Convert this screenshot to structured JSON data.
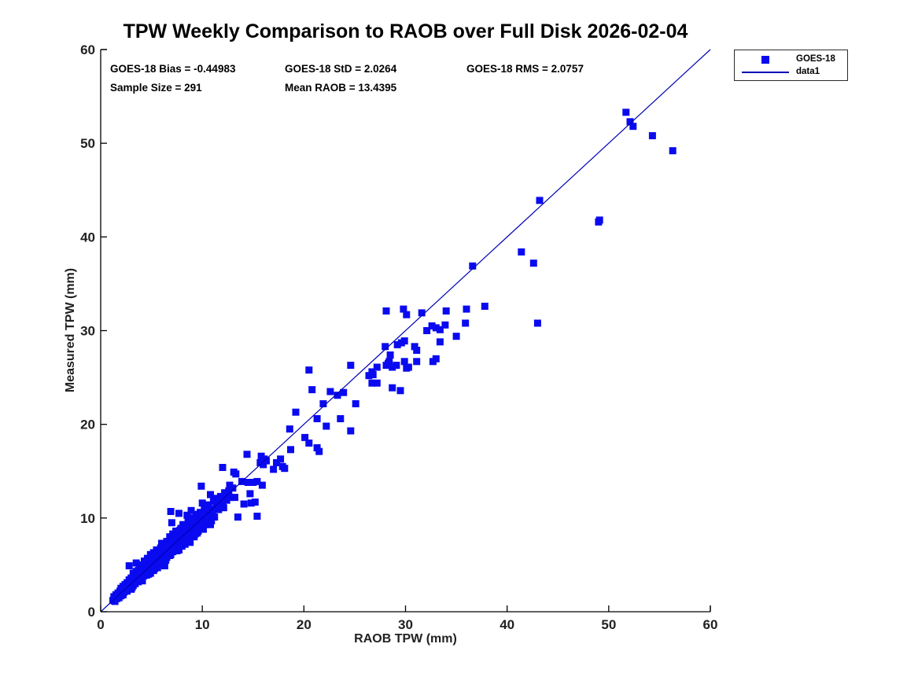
{
  "title": "TPW Weekly Comparison to RAOB over Full Disk 2026-02-04",
  "stats": {
    "bias": "GOES-18 Bias = -0.44983",
    "std": "GOES-18 StD = 2.0264",
    "rms": "GOES-18 RMS = 2.0757",
    "sample_size": "Sample Size = 291",
    "mean_raob": "Mean RAOB = 13.4395"
  },
  "legend": {
    "entries": [
      {
        "label": "GOES-18",
        "swatch": "square-marker"
      },
      {
        "label": "data1",
        "swatch": "line"
      }
    ]
  },
  "colors": {
    "marker": "#0a0af0",
    "line": "#0000b4",
    "axis": "#000000",
    "tick_label": "#212121"
  },
  "chart_data": {
    "type": "scatter",
    "title": "TPW Weekly Comparison to RAOB over Full Disk 2026-02-04",
    "xlabel": "RAOB TPW (mm)",
    "ylabel": "Measured TPW (mm)",
    "xlim": [
      0,
      60
    ],
    "ylim": [
      0,
      60
    ],
    "xticks": [
      0,
      10,
      20,
      30,
      40,
      50,
      60
    ],
    "yticks": [
      0,
      10,
      20,
      30,
      40,
      50,
      60
    ],
    "grid": false,
    "legend_position": "outside-top-right",
    "annotations": [
      "GOES-18 Bias = -0.44983",
      "GOES-18 StD = 2.0264",
      "GOES-18 RMS = 2.0757",
      "Sample Size = 291",
      "Mean RAOB = 13.4395"
    ],
    "series": [
      {
        "name": "GOES-18",
        "type": "scatter",
        "marker": "square",
        "marker_size": 9,
        "color": "#0a0af0",
        "points": [
          [
            1.2,
            1.2
          ],
          [
            1.3,
            1.6
          ],
          [
            1.4,
            1.1
          ],
          [
            1.5,
            1.8
          ],
          [
            1.6,
            1.4
          ],
          [
            1.7,
            2.0
          ],
          [
            1.8,
            1.5
          ],
          [
            1.9,
            2.2
          ],
          [
            2.0,
            1.7
          ],
          [
            2.0,
            2.5
          ],
          [
            2.1,
            2.0
          ],
          [
            2.2,
            2.7
          ],
          [
            2.3,
            2.1
          ],
          [
            2.4,
            2.9
          ],
          [
            2.5,
            2.3
          ],
          [
            2.6,
            3.1
          ],
          [
            2.7,
            2.6
          ],
          [
            2.8,
            3.4
          ],
          [
            2.8,
            4.9
          ],
          [
            2.9,
            2.8
          ],
          [
            3.0,
            3.6
          ],
          [
            3.0,
            2.4
          ],
          [
            3.1,
            3.2
          ],
          [
            3.2,
            2.8
          ],
          [
            3.2,
            4.1
          ],
          [
            3.3,
            3.5
          ],
          [
            3.4,
            3.0
          ],
          [
            3.5,
            4.3
          ],
          [
            3.5,
            5.2
          ],
          [
            3.6,
            3.8
          ],
          [
            3.7,
            3.2
          ],
          [
            3.8,
            4.6
          ],
          [
            3.9,
            4.0
          ],
          [
            4.0,
            3.5
          ],
          [
            4.0,
            5.0
          ],
          [
            4.1,
            4.4
          ],
          [
            4.2,
            3.8
          ],
          [
            4.3,
            5.4
          ],
          [
            4.4,
            4.2
          ],
          [
            4.5,
            5.1
          ],
          [
            4.5,
            3.9
          ],
          [
            4.6,
            5.7
          ],
          [
            4.7,
            4.5
          ],
          [
            4.8,
            5.3
          ],
          [
            4.9,
            4.1
          ],
          [
            4.9,
            6.1
          ],
          [
            5.0,
            4.8
          ],
          [
            5.1,
            5.5
          ],
          [
            5.2,
            4.4
          ],
          [
            5.2,
            6.3
          ],
          [
            5.3,
            5.0
          ],
          [
            5.4,
            5.8
          ],
          [
            5.5,
            5.1
          ],
          [
            5.5,
            6.6
          ],
          [
            5.6,
            4.7
          ],
          [
            5.7,
            6.1
          ],
          [
            5.8,
            5.4
          ],
          [
            5.9,
            6.8
          ],
          [
            6.0,
            5.7
          ],
          [
            6.0,
            7.3
          ],
          [
            6.1,
            5.2
          ],
          [
            6.1,
            6.4
          ],
          [
            6.2,
            5.9
          ],
          [
            6.3,
            7.0
          ],
          [
            6.3,
            4.9
          ],
          [
            6.4,
            6.6
          ],
          [
            6.5,
            5.8
          ],
          [
            6.5,
            7.5
          ],
          [
            6.6,
            6.2
          ],
          [
            6.7,
            7.1
          ],
          [
            6.8,
            6.0
          ],
          [
            6.8,
            8.0
          ],
          [
            6.9,
            6.7
          ],
          [
            6.9,
            10.7
          ],
          [
            7.0,
            7.6
          ],
          [
            7.1,
            6.4
          ],
          [
            7.1,
            8.3
          ],
          [
            7.2,
            7.0
          ],
          [
            7.3,
            7.9
          ],
          [
            7.4,
            6.8
          ],
          [
            7.4,
            8.6
          ],
          [
            7.5,
            7.3
          ],
          [
            7.6,
            8.1
          ],
          [
            7.7,
            6.6
          ],
          [
            7.7,
            10.5
          ],
          [
            7.8,
            7.8
          ],
          [
            7.9,
            8.9
          ],
          [
            7.9,
            7.1
          ],
          [
            8.0,
            8.4
          ],
          [
            8.1,
            7.5
          ],
          [
            8.1,
            9.3
          ],
          [
            8.2,
            8.0
          ],
          [
            8.3,
            8.8
          ],
          [
            8.3,
            7.2
          ],
          [
            8.4,
            9.1
          ],
          [
            8.5,
            7.9
          ],
          [
            8.5,
            10.3
          ],
          [
            8.6,
            8.5
          ],
          [
            8.7,
            9.5
          ],
          [
            8.7,
            7.6
          ],
          [
            8.8,
            8.9
          ],
          [
            8.9,
            9.8
          ],
          [
            8.9,
            8.2
          ],
          [
            9.0,
            9.2
          ],
          [
            9.1,
            8.6
          ],
          [
            9.1,
            10.0
          ],
          [
            9.2,
            8.0
          ],
          [
            9.3,
            9.5
          ],
          [
            9.4,
            8.9
          ],
          [
            9.5,
            10.2
          ],
          [
            9.5,
            8.4
          ],
          [
            9.6,
            9.8
          ],
          [
            9.7,
            9.1
          ],
          [
            9.8,
            10.6
          ],
          [
            9.9,
            13.4
          ],
          [
            9.9,
            9.4
          ],
          [
            10.0,
            10.1
          ],
          [
            10.1,
            8.8
          ],
          [
            10.2,
            10.9
          ],
          [
            10.3,
            9.6
          ],
          [
            10.3,
            11.2
          ],
          [
            10.4,
            10.4
          ],
          [
            10.5,
            9.9
          ],
          [
            10.6,
            11.4
          ],
          [
            10.7,
            10.2
          ],
          [
            10.8,
            12.5
          ],
          [
            10.8,
            9.3
          ],
          [
            10.9,
            11.0
          ],
          [
            11.0,
            10.6
          ],
          [
            11.1,
            11.8
          ],
          [
            11.2,
            10.1
          ],
          [
            11.4,
            11.3
          ],
          [
            11.5,
            12.1
          ],
          [
            11.6,
            10.9
          ],
          [
            11.8,
            12.3
          ],
          [
            12.0,
            11.5
          ],
          [
            12.2,
            12.7
          ],
          [
            12.4,
            11.9
          ],
          [
            12.6,
            12.9
          ],
          [
            12.8,
            12.2
          ],
          [
            13.0,
            13.2
          ],
          [
            2.2,
            1.8
          ],
          [
            2.6,
            2.2
          ],
          [
            3.1,
            2.6
          ],
          [
            3.4,
            3.9
          ],
          [
            3.7,
            4.4
          ],
          [
            4.1,
            3.3
          ],
          [
            4.4,
            4.9
          ],
          [
            4.7,
            4.0
          ],
          [
            5.0,
            5.9
          ],
          [
            5.3,
            4.6
          ],
          [
            5.6,
            5.9
          ],
          [
            5.9,
            5.0
          ],
          [
            6.2,
            6.9
          ],
          [
            6.4,
            5.5
          ],
          [
            6.6,
            7.3
          ],
          [
            6.9,
            6.1
          ],
          [
            7.2,
            7.8
          ],
          [
            7.5,
            6.5
          ],
          [
            7.8,
            8.7
          ],
          [
            8.0,
            7.0
          ],
          [
            8.2,
            9.0
          ],
          [
            8.4,
            7.7
          ],
          [
            8.6,
            9.7
          ],
          [
            8.8,
            7.4
          ],
          [
            9.0,
            10.0
          ],
          [
            9.2,
            9.0
          ],
          [
            9.4,
            10.4
          ],
          [
            9.6,
            8.6
          ],
          [
            9.8,
            9.6
          ],
          [
            10.0,
            9.0
          ],
          [
            10.2,
            10.3
          ],
          [
            10.4,
            9.3
          ],
          [
            10.6,
            10.0
          ],
          [
            10.9,
            9.7
          ],
          [
            11.1,
            10.9
          ],
          [
            11.3,
            12.0
          ],
          [
            11.7,
            11.6
          ],
          [
            12.1,
            11.1
          ],
          [
            12.3,
            12.4
          ],
          [
            12.7,
            13.5
          ],
          [
            5.8,
            6.4
          ],
          [
            6.7,
            6.9
          ],
          [
            7.6,
            7.6
          ],
          [
            8.5,
            8.3
          ],
          [
            9.3,
            8.3
          ],
          [
            4.6,
            4.4
          ],
          [
            3.9,
            3.6
          ],
          [
            2.9,
            3.3
          ],
          [
            7.0,
            9.5
          ],
          [
            8.9,
            10.8
          ],
          [
            10.0,
            11.6
          ],
          [
            14.4,
            16.8
          ],
          [
            15.8,
            16.6
          ],
          [
            16.1,
            16.3
          ],
          [
            16.3,
            16.1
          ],
          [
            15.7,
            15.9
          ],
          [
            16.0,
            15.7
          ],
          [
            17.3,
            15.9
          ],
          [
            17.7,
            16.3
          ],
          [
            17.9,
            15.5
          ],
          [
            18.1,
            15.3
          ],
          [
            17.0,
            15.2
          ],
          [
            13.3,
            14.7
          ],
          [
            13.9,
            13.9
          ],
          [
            14.5,
            13.8
          ],
          [
            15.0,
            13.8
          ],
          [
            15.4,
            13.9
          ],
          [
            15.9,
            13.5
          ],
          [
            12.5,
            12.6
          ],
          [
            13.2,
            12.2
          ],
          [
            14.7,
            12.6
          ],
          [
            14.8,
            11.6
          ],
          [
            15.2,
            11.7
          ],
          [
            12.0,
            15.4
          ],
          [
            13.1,
            14.9
          ],
          [
            13.5,
            10.1
          ],
          [
            14.1,
            11.5
          ],
          [
            15.4,
            10.2
          ],
          [
            18.6,
            19.5
          ],
          [
            19.2,
            21.3
          ],
          [
            20.1,
            18.6
          ],
          [
            20.5,
            18.0
          ],
          [
            21.3,
            17.5
          ],
          [
            21.5,
            17.1
          ],
          [
            18.7,
            17.3
          ],
          [
            20.8,
            23.7
          ],
          [
            21.3,
            20.6
          ],
          [
            22.2,
            19.8
          ],
          [
            21.9,
            22.2
          ],
          [
            23.6,
            20.6
          ],
          [
            24.6,
            19.3
          ],
          [
            22.6,
            23.5
          ],
          [
            23.3,
            23.1
          ],
          [
            23.9,
            23.4
          ],
          [
            20.5,
            25.8
          ],
          [
            24.6,
            26.3
          ],
          [
            25.1,
            22.2
          ],
          [
            26.4,
            25.2
          ],
          [
            26.7,
            25.6
          ],
          [
            26.8,
            25.3
          ],
          [
            27.2,
            26.1
          ],
          [
            27.2,
            24.4
          ],
          [
            26.7,
            24.4
          ],
          [
            28.7,
            23.9
          ],
          [
            29.5,
            23.6
          ],
          [
            28.1,
            26.3
          ],
          [
            28.3,
            26.5
          ],
          [
            28.4,
            26.7
          ],
          [
            28.7,
            26.1
          ],
          [
            29.1,
            26.3
          ],
          [
            29.9,
            26.7
          ],
          [
            30.1,
            26.0
          ],
          [
            30.3,
            26.1
          ],
          [
            31.1,
            26.7
          ],
          [
            32.7,
            26.7
          ],
          [
            33.0,
            27.0
          ],
          [
            28.0,
            28.3
          ],
          [
            28.5,
            27.4
          ],
          [
            29.2,
            28.5
          ],
          [
            29.6,
            28.7
          ],
          [
            29.9,
            28.9
          ],
          [
            30.9,
            28.3
          ],
          [
            31.1,
            27.9
          ],
          [
            28.1,
            32.1
          ],
          [
            29.8,
            32.3
          ],
          [
            30.1,
            31.7
          ],
          [
            31.6,
            31.9
          ],
          [
            34.0,
            32.1
          ],
          [
            36.0,
            32.3
          ],
          [
            37.8,
            32.6
          ],
          [
            32.1,
            30.0
          ],
          [
            32.6,
            30.5
          ],
          [
            33.0,
            30.3
          ],
          [
            33.4,
            30.1
          ],
          [
            33.9,
            30.6
          ],
          [
            35.0,
            29.4
          ],
          [
            33.4,
            28.8
          ],
          [
            35.9,
            30.8
          ],
          [
            36.6,
            36.9
          ],
          [
            41.4,
            38.4
          ],
          [
            42.6,
            37.2
          ],
          [
            43.2,
            43.9
          ],
          [
            43.0,
            30.8
          ],
          [
            49.0,
            41.6
          ],
          [
            49.1,
            41.8
          ],
          [
            51.7,
            53.3
          ],
          [
            52.1,
            52.3
          ],
          [
            52.4,
            51.8
          ],
          [
            54.3,
            50.8
          ],
          [
            56.3,
            49.2
          ]
        ]
      },
      {
        "name": "data1",
        "type": "line",
        "color": "#0000b4",
        "points": [
          [
            0,
            0
          ],
          [
            60,
            60
          ]
        ]
      }
    ]
  }
}
